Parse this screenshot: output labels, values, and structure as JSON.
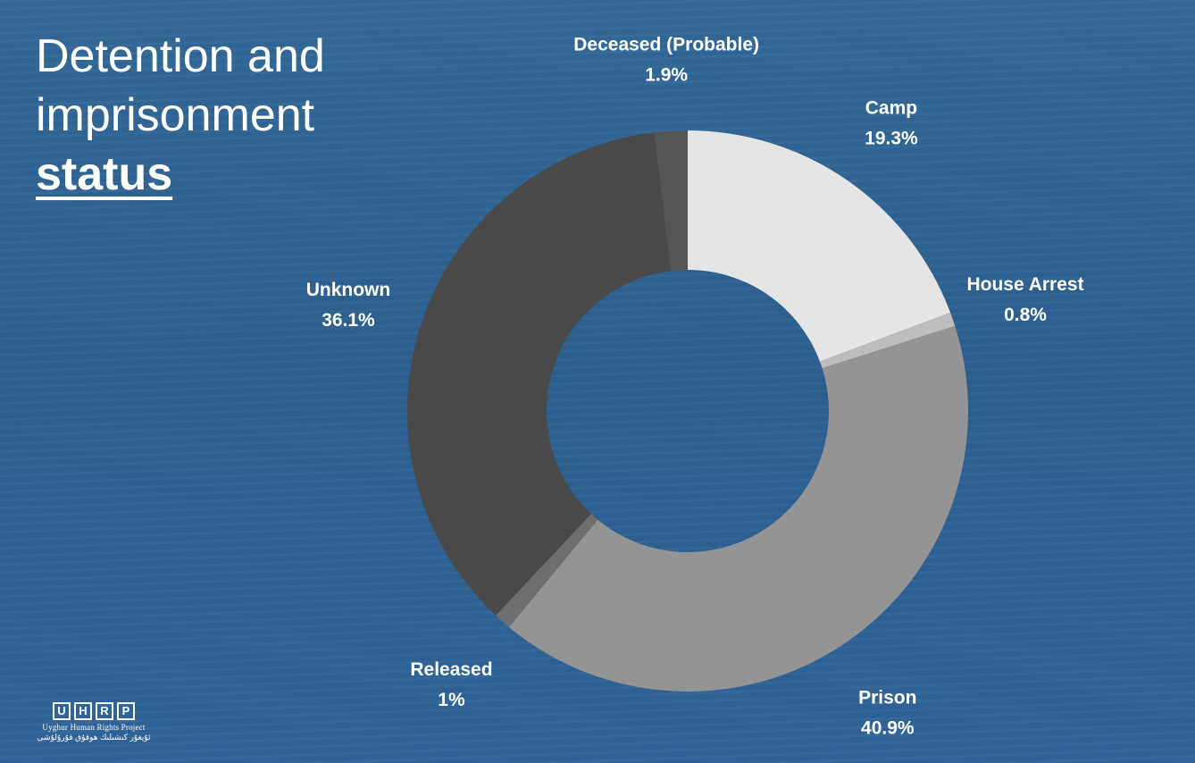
{
  "title": {
    "line1": "Detention and",
    "line2": "imprisonment",
    "line3": "status"
  },
  "logo": {
    "letters": [
      "U",
      "H",
      "R",
      "P"
    ],
    "name": "Uyghur Human Rights Project",
    "native_name": "ئۇيغۇر كىشىلىك ھوقۇق قۇرۇلۇشى"
  },
  "chart_data": {
    "type": "pie",
    "donut": true,
    "legend": "none",
    "slices": [
      {
        "label": "Camp",
        "value": 19.3,
        "value_label": "19.3%",
        "color": "#e5e5e5"
      },
      {
        "label": "House Arrest",
        "value": 0.8,
        "value_label": "0.8%",
        "color": "#bdbdbd"
      },
      {
        "label": "Prison",
        "value": 40.9,
        "value_label": "40.9%",
        "color": "#949494"
      },
      {
        "label": "Released",
        "value": 1.0,
        "value_label": "1%",
        "color": "#6e6e6e"
      },
      {
        "label": "Unknown",
        "value": 36.1,
        "value_label": "36.1%",
        "color": "#494949"
      },
      {
        "label": "Deceased (Probable)",
        "value": 1.9,
        "value_label": "1.9%",
        "color": "#555555"
      }
    ]
  }
}
